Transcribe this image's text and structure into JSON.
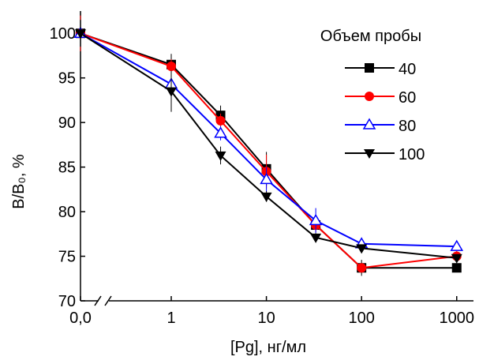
{
  "chart_data": {
    "type": "line",
    "xlabel": "[Pg], нг/мл",
    "ylabel": "B/B₀, %",
    "legend_title": "Объем пробы",
    "x": [
      0,
      1,
      3.3,
      10,
      33,
      100,
      1000
    ],
    "xscale": "log",
    "xlim": [
      0,
      1500
    ],
    "xticks": [
      {
        "value": 0,
        "label": "0,0"
      },
      1,
      10,
      100,
      1000
    ],
    "ylim": [
      70,
      102.5
    ],
    "yticks": [
      70,
      75,
      80,
      85,
      90,
      95,
      100
    ],
    "series": [
      {
        "name": "40",
        "color": "#000000",
        "marker": "square",
        "values": [
          100,
          96.5,
          90.8,
          84.8,
          78.5,
          73.7,
          73.7
        ],
        "errors": [
          2,
          1.2,
          1.1,
          1.9,
          0.5,
          0.9,
          0.4
        ]
      },
      {
        "name": "60",
        "color": "#ff0000",
        "marker": "circle",
        "values": [
          100,
          96.3,
          90.2,
          84.5,
          78.5,
          73.7,
          75
        ],
        "errors": [
          2,
          0.8,
          0.8,
          1.9,
          0.8,
          0.5,
          0.6
        ]
      },
      {
        "name": "80",
        "color": "#0000ff",
        "marker": "triangle-up-open",
        "values": [
          100,
          94.3,
          88.8,
          83.6,
          79,
          76.4,
          76.1
        ],
        "errors": [
          1,
          0.8,
          0.8,
          1.4,
          1.4,
          0.3,
          0.3
        ]
      },
      {
        "name": "100",
        "color": "#000000",
        "marker": "triangle-down",
        "values": [
          100,
          93.5,
          86.3,
          81.7,
          77.1,
          75.9,
          74.8
        ],
        "errors": [
          1.5,
          2.3,
          1,
          0.6,
          0.5,
          0.4,
          0.4
        ]
      }
    ]
  }
}
